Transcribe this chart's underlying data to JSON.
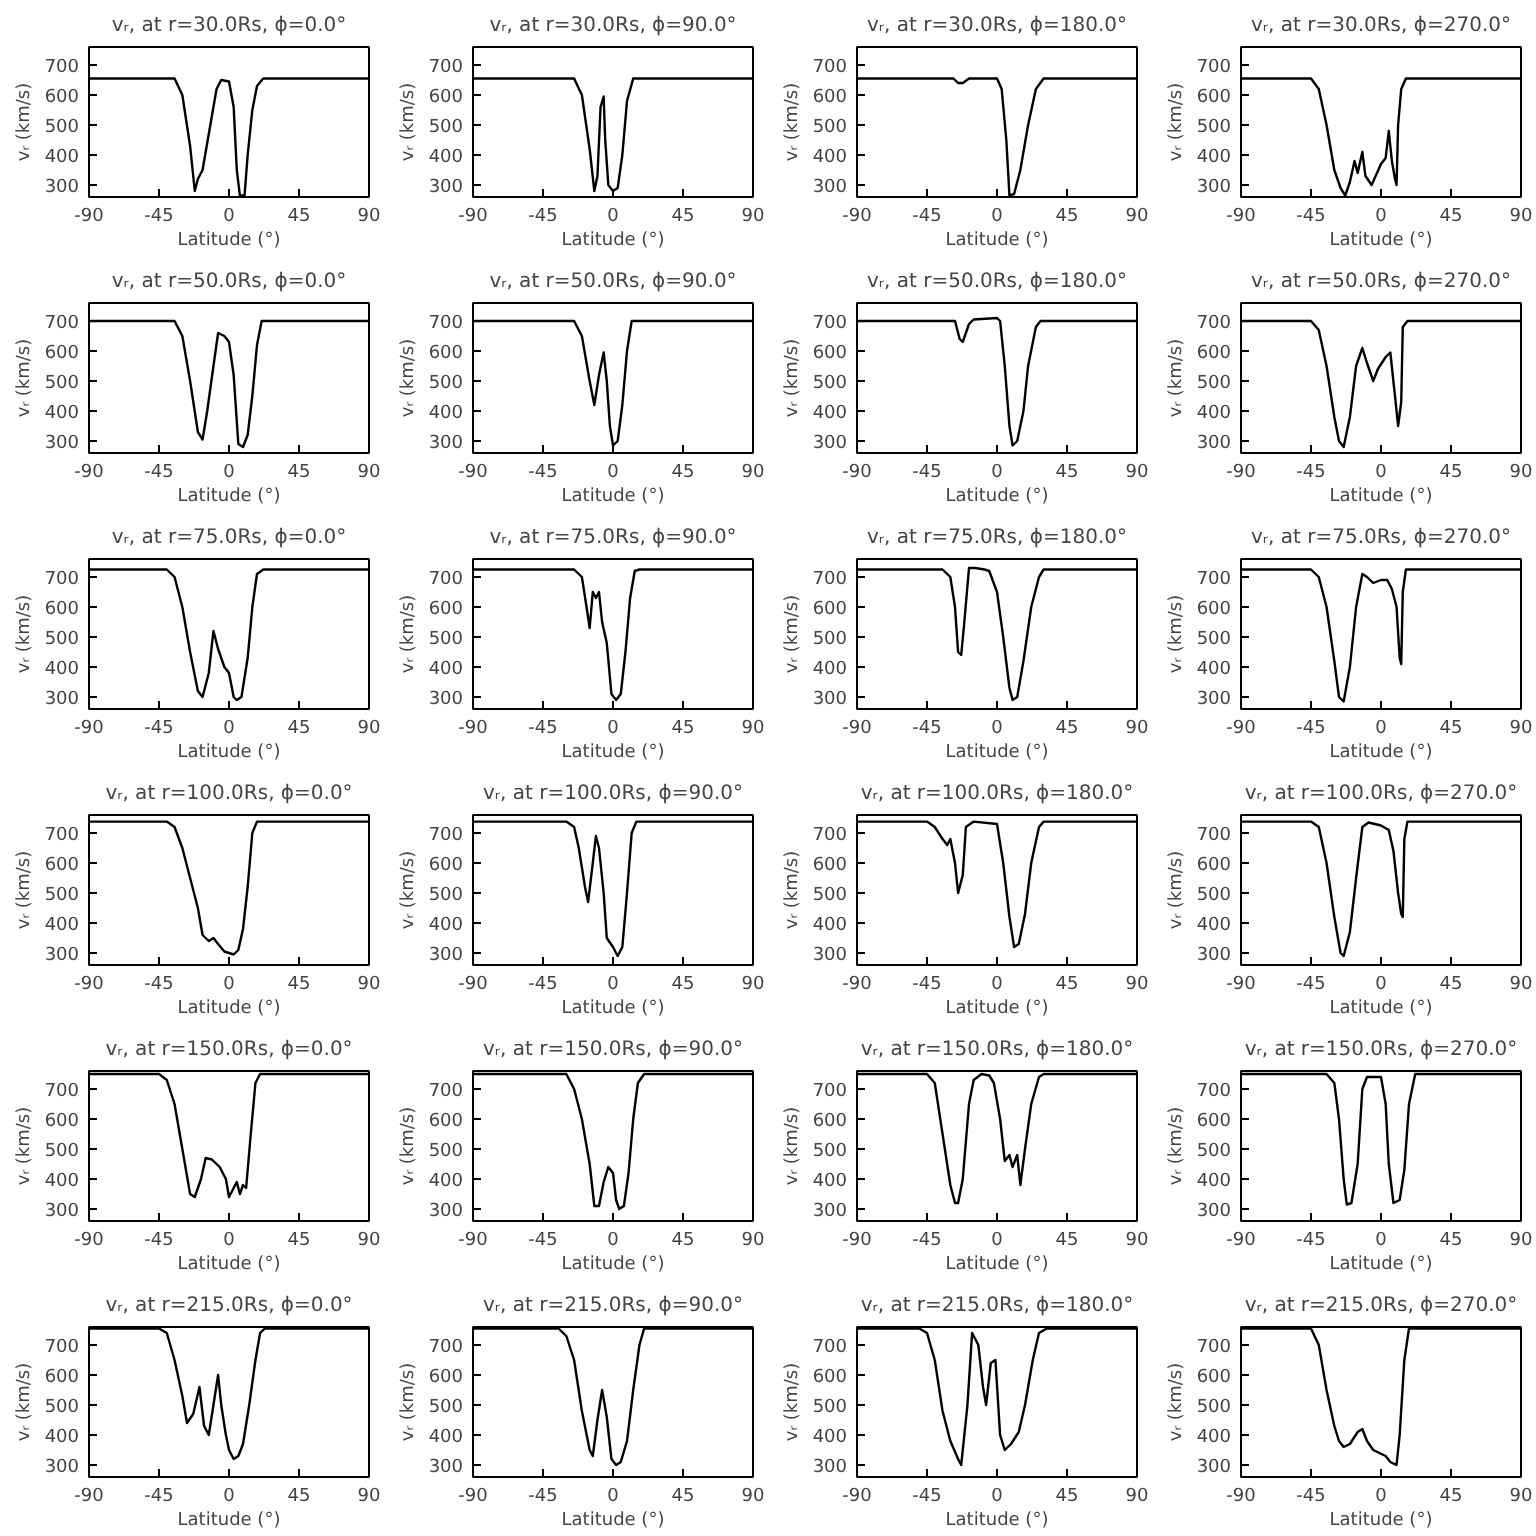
{
  "chart_data": [
    {
      "type": "line",
      "title": "vᵣ, at r=30.0Rs, ϕ=0.0°",
      "xlabel": "Latitude (°)",
      "ylabel": "vᵣ (km/s)",
      "color": "#000000",
      "xlim": [
        -90,
        90
      ],
      "ylim": [
        260,
        760
      ],
      "xticks": [
        -90,
        -45,
        0,
        45,
        90
      ],
      "yticks": [
        300,
        400,
        500,
        600,
        700
      ],
      "x": [
        -90,
        -35,
        -30,
        -25,
        -22,
        -20,
        -17,
        -12,
        -8,
        -5,
        0,
        3,
        5,
        7,
        10,
        12,
        15,
        18,
        22,
        90
      ],
      "values": [
        655,
        655,
        600,
        430,
        280,
        320,
        350,
        500,
        620,
        650,
        645,
        560,
        350,
        265,
        265,
        400,
        550,
        630,
        655,
        655
      ]
    },
    {
      "type": "line",
      "title": "vᵣ, at r=30.0Rs, ϕ=90.0°",
      "xlabel": "Latitude (°)",
      "ylabel": "vᵣ (km/s)",
      "color": "#000000",
      "xlim": [
        -90,
        90
      ],
      "ylim": [
        260,
        760
      ],
      "xticks": [
        -90,
        -45,
        0,
        45,
        90
      ],
      "yticks": [
        300,
        400,
        500,
        600,
        700
      ],
      "x": [
        -90,
        -25,
        -20,
        -15,
        -12,
        -10,
        -8,
        -6,
        -5,
        -3,
        0,
        3,
        6,
        9,
        13,
        90
      ],
      "values": [
        655,
        655,
        600,
        420,
        280,
        330,
        560,
        595,
        450,
        300,
        280,
        290,
        400,
        580,
        655,
        655
      ]
    },
    {
      "type": "line",
      "title": "vᵣ, at r=30.0Rs, ϕ=180.0°",
      "xlabel": "Latitude (°)",
      "ylabel": "vᵣ (km/s)",
      "color": "#000000",
      "xlim": [
        -90,
        90
      ],
      "ylim": [
        260,
        760
      ],
      "xticks": [
        -90,
        -45,
        0,
        45,
        90
      ],
      "yticks": [
        300,
        400,
        500,
        600,
        700
      ],
      "x": [
        -90,
        -28,
        -25,
        -22,
        -18,
        0,
        3,
        6,
        8,
        11,
        15,
        20,
        25,
        30,
        90
      ],
      "values": [
        655,
        655,
        640,
        640,
        655,
        655,
        620,
        450,
        265,
        270,
        350,
        500,
        620,
        655,
        655
      ]
    },
    {
      "type": "line",
      "title": "vᵣ, at r=30.0Rs, ϕ=270.0°",
      "xlabel": "Latitude (°)",
      "ylabel": "vᵣ (km/s)",
      "color": "#000000",
      "xlim": [
        -90,
        90
      ],
      "ylim": [
        260,
        760
      ],
      "xticks": [
        -90,
        -45,
        0,
        45,
        90
      ],
      "yticks": [
        300,
        400,
        500,
        600,
        700
      ],
      "x": [
        -90,
        -45,
        -40,
        -35,
        -30,
        -26,
        -23,
        -20,
        -17,
        -15,
        -12,
        -10,
        -6,
        0,
        3,
        5,
        7,
        9,
        10,
        11,
        13,
        16,
        90
      ],
      "values": [
        655,
        655,
        620,
        500,
        350,
        290,
        265,
        310,
        380,
        340,
        410,
        330,
        300,
        370,
        390,
        480,
        380,
        320,
        300,
        500,
        620,
        655,
        655
      ]
    },
    {
      "type": "line",
      "title": "vᵣ, at r=50.0Rs, ϕ=0.0°",
      "xlabel": "Latitude (°)",
      "ylabel": "vᵣ (km/s)",
      "color": "#000000",
      "xlim": [
        -90,
        90
      ],
      "ylim": [
        260,
        760
      ],
      "xticks": [
        -90,
        -45,
        0,
        45,
        90
      ],
      "yticks": [
        300,
        400,
        500,
        600,
        700
      ],
      "x": [
        -90,
        -35,
        -30,
        -25,
        -20,
        -17,
        -14,
        -10,
        -7,
        -3,
        0,
        3,
        6,
        9,
        12,
        15,
        18,
        21,
        90
      ],
      "values": [
        700,
        700,
        650,
        500,
        330,
        305,
        400,
        550,
        660,
        650,
        630,
        520,
        290,
        280,
        320,
        450,
        620,
        700,
        700
      ]
    },
    {
      "type": "line",
      "title": "vᵣ, at r=50.0Rs, ϕ=90.0°",
      "xlabel": "Latitude (°)",
      "ylabel": "vᵣ (km/s)",
      "color": "#000000",
      "xlim": [
        -90,
        90
      ],
      "ylim": [
        260,
        760
      ],
      "xticks": [
        -90,
        -45,
        0,
        45,
        90
      ],
      "yticks": [
        300,
        400,
        500,
        600,
        700
      ],
      "x": [
        -90,
        -25,
        -20,
        -15,
        -12,
        -9,
        -6,
        -4,
        -2,
        0,
        3,
        6,
        9,
        12,
        90
      ],
      "values": [
        700,
        700,
        650,
        500,
        420,
        520,
        595,
        500,
        350,
        285,
        300,
        420,
        600,
        700,
        700
      ]
    },
    {
      "type": "line",
      "title": "vᵣ, at r=50.0Rs, ϕ=180.0°",
      "xlabel": "Latitude (°)",
      "ylabel": "vᵣ (km/s)",
      "color": "#000000",
      "xlim": [
        -90,
        90
      ],
      "ylim": [
        260,
        760
      ],
      "xticks": [
        -90,
        -45,
        0,
        45,
        90
      ],
      "yticks": [
        300,
        400,
        500,
        600,
        700
      ],
      "x": [
        -90,
        -27,
        -24,
        -22,
        -18,
        -15,
        0,
        2,
        5,
        8,
        10,
        13,
        17,
        20,
        25,
        28,
        90
      ],
      "values": [
        700,
        700,
        640,
        630,
        690,
        705,
        710,
        700,
        550,
        350,
        285,
        300,
        400,
        550,
        680,
        700,
        700
      ]
    },
    {
      "type": "line",
      "title": "vᵣ, at r=50.0Rs, ϕ=270.0°",
      "xlabel": "Latitude (°)",
      "ylabel": "vᵣ (km/s)",
      "color": "#000000",
      "xlim": [
        -90,
        90
      ],
      "ylim": [
        260,
        760
      ],
      "xticks": [
        -90,
        -45,
        0,
        45,
        90
      ],
      "yticks": [
        300,
        400,
        500,
        600,
        700
      ],
      "x": [
        -90,
        -45,
        -40,
        -35,
        -30,
        -27,
        -24,
        -20,
        -16,
        -12,
        -9,
        -5,
        -2,
        3,
        6,
        9,
        11,
        13,
        14,
        17,
        90
      ],
      "values": [
        700,
        700,
        670,
        550,
        380,
        300,
        280,
        380,
        550,
        610,
        560,
        500,
        540,
        580,
        595,
        450,
        350,
        430,
        680,
        700,
        700
      ]
    },
    {
      "type": "line",
      "title": "vᵣ, at r=75.0Rs, ϕ=0.0°",
      "xlabel": "Latitude (°)",
      "ylabel": "vᵣ (km/s)",
      "color": "#000000",
      "xlim": [
        -90,
        90
      ],
      "ylim": [
        260,
        760
      ],
      "xticks": [
        -90,
        -45,
        0,
        45,
        90
      ],
      "yticks": [
        300,
        400,
        500,
        600,
        700
      ],
      "x": [
        -90,
        -40,
        -35,
        -30,
        -25,
        -20,
        -17,
        -13,
        -10,
        -7,
        -3,
        0,
        3,
        5,
        8,
        12,
        15,
        18,
        22,
        90
      ],
      "values": [
        725,
        725,
        700,
        600,
        450,
        320,
        300,
        380,
        520,
        460,
        400,
        380,
        300,
        290,
        300,
        430,
        600,
        710,
        725,
        725
      ]
    },
    {
      "type": "line",
      "title": "vᵣ, at r=75.0Rs, ϕ=90.0°",
      "xlabel": "Latitude (°)",
      "ylabel": "vᵣ (km/s)",
      "color": "#000000",
      "xlim": [
        -90,
        90
      ],
      "ylim": [
        260,
        760
      ],
      "xticks": [
        -90,
        -45,
        0,
        45,
        90
      ],
      "yticks": [
        300,
        400,
        500,
        600,
        700
      ],
      "x": [
        -90,
        -25,
        -20,
        -17,
        -15,
        -13,
        -11,
        -9,
        -7,
        -4,
        -1,
        2,
        5,
        8,
        11,
        14,
        17,
        90
      ],
      "values": [
        725,
        725,
        700,
        600,
        530,
        650,
        630,
        650,
        550,
        480,
        310,
        290,
        310,
        450,
        630,
        720,
        725,
        725
      ]
    },
    {
      "type": "line",
      "title": "vᵣ, at r=75.0Rs, ϕ=180.0°",
      "xlabel": "Latitude (°)",
      "ylabel": "vᵣ (km/s)",
      "color": "#000000",
      "xlim": [
        -90,
        90
      ],
      "ylim": [
        260,
        760
      ],
      "xticks": [
        -90,
        -45,
        0,
        45,
        90
      ],
      "yticks": [
        300,
        400,
        500,
        600,
        700
      ],
      "x": [
        -90,
        -35,
        -30,
        -27,
        -25,
        -23,
        -21,
        -18,
        -14,
        -8,
        -5,
        0,
        4,
        8,
        10,
        13,
        17,
        22,
        27,
        30,
        90
      ],
      "values": [
        725,
        725,
        700,
        600,
        450,
        440,
        550,
        730,
        730,
        725,
        720,
        650,
        500,
        330,
        290,
        300,
        420,
        600,
        700,
        725,
        725
      ]
    },
    {
      "type": "line",
      "title": "vᵣ, at r=75.0Rs, ϕ=270.0°",
      "xlabel": "Latitude (°)",
      "ylabel": "vᵣ (km/s)",
      "color": "#000000",
      "xlim": [
        -90,
        90
      ],
      "ylim": [
        260,
        760
      ],
      "xticks": [
        -90,
        -45,
        0,
        45,
        90
      ],
      "yticks": [
        300,
        400,
        500,
        600,
        700
      ],
      "x": [
        -90,
        -45,
        -40,
        -35,
        -30,
        -27,
        -24,
        -20,
        -16,
        -12,
        -9,
        -5,
        0,
        4,
        7,
        10,
        12,
        13,
        14,
        16,
        90
      ],
      "values": [
        725,
        725,
        700,
        600,
        420,
        300,
        285,
        400,
        600,
        710,
        700,
        680,
        690,
        690,
        660,
        600,
        430,
        410,
        650,
        725,
        725
      ]
    },
    {
      "type": "line",
      "title": "vᵣ, at r=100.0Rs, ϕ=0.0°",
      "xlabel": "Latitude (°)",
      "ylabel": "vᵣ (km/s)",
      "color": "#000000",
      "xlim": [
        -90,
        90
      ],
      "ylim": [
        260,
        760
      ],
      "xticks": [
        -90,
        -45,
        0,
        45,
        90
      ],
      "yticks": [
        300,
        400,
        500,
        600,
        700
      ],
      "x": [
        -90,
        -40,
        -35,
        -30,
        -25,
        -20,
        -17,
        -13,
        -10,
        -7,
        -3,
        0,
        3,
        6,
        9,
        12,
        15,
        18,
        90
      ],
      "values": [
        738,
        738,
        720,
        650,
        550,
        450,
        360,
        340,
        350,
        330,
        305,
        300,
        295,
        310,
        380,
        520,
        700,
        738,
        738
      ]
    },
    {
      "type": "line",
      "title": "vᵣ, at r=100.0Rs, ϕ=90.0°",
      "xlabel": "Latitude (°)",
      "ylabel": "vᵣ (km/s)",
      "color": "#000000",
      "xlim": [
        -90,
        90
      ],
      "ylim": [
        260,
        760
      ],
      "xticks": [
        -90,
        -45,
        0,
        45,
        90
      ],
      "yticks": [
        300,
        400,
        500,
        600,
        700
      ],
      "x": [
        -90,
        -30,
        -25,
        -22,
        -18,
        -16,
        -13,
        -11,
        -9,
        -6,
        -4,
        0,
        3,
        6,
        9,
        12,
        15,
        90
      ],
      "values": [
        738,
        738,
        720,
        650,
        520,
        470,
        600,
        690,
        650,
        500,
        350,
        320,
        290,
        320,
        500,
        700,
        738,
        738
      ]
    },
    {
      "type": "line",
      "title": "vᵣ, at r=100.0Rs, ϕ=180.0°",
      "xlabel": "Latitude (°)",
      "ylabel": "vᵣ (km/s)",
      "color": "#000000",
      "xlim": [
        -90,
        90
      ],
      "ylim": [
        260,
        760
      ],
      "xticks": [
        -90,
        -45,
        0,
        45,
        90
      ],
      "yticks": [
        300,
        400,
        500,
        600,
        700
      ],
      "x": [
        -90,
        -45,
        -40,
        -35,
        -32,
        -30,
        -27,
        -25,
        -22,
        -20,
        -15,
        0,
        4,
        8,
        11,
        14,
        18,
        22,
        27,
        30,
        90
      ],
      "values": [
        738,
        738,
        720,
        680,
        660,
        680,
        600,
        500,
        560,
        720,
        738,
        730,
        600,
        420,
        320,
        330,
        430,
        600,
        720,
        738,
        738
      ]
    },
    {
      "type": "line",
      "title": "vᵣ, at r=100.0Rs, ϕ=270.0°",
      "xlabel": "Latitude (°)",
      "ylabel": "vᵣ (km/s)",
      "color": "#000000",
      "xlim": [
        -90,
        90
      ],
      "ylim": [
        260,
        760
      ],
      "xticks": [
        -90,
        -45,
        0,
        45,
        90
      ],
      "yticks": [
        300,
        400,
        500,
        600,
        700
      ],
      "x": [
        -90,
        -45,
        -40,
        -35,
        -30,
        -26,
        -24,
        -20,
        -16,
        -12,
        -8,
        0,
        5,
        8,
        11,
        13,
        14,
        15,
        17,
        90
      ],
      "values": [
        738,
        738,
        720,
        600,
        420,
        300,
        290,
        370,
        550,
        720,
        735,
        725,
        710,
        640,
        500,
        430,
        420,
        680,
        738,
        738
      ]
    },
    {
      "type": "line",
      "title": "vᵣ, at r=150.0Rs, ϕ=0.0°",
      "xlabel": "Latitude (°)",
      "ylabel": "vᵣ (km/s)",
      "color": "#000000",
      "xlim": [
        -90,
        90
      ],
      "ylim": [
        260,
        760
      ],
      "xticks": [
        -90,
        -45,
        0,
        45,
        90
      ],
      "yticks": [
        300,
        400,
        500,
        600,
        700
      ],
      "x": [
        -90,
        -45,
        -40,
        -35,
        -30,
        -25,
        -22,
        -18,
        -15,
        -11,
        -6,
        -2,
        0,
        3,
        5,
        7,
        9,
        11,
        14,
        17,
        20,
        90
      ],
      "values": [
        750,
        750,
        730,
        650,
        500,
        350,
        340,
        400,
        470,
        465,
        440,
        400,
        340,
        370,
        390,
        350,
        380,
        370,
        550,
        720,
        750,
        750
      ]
    },
    {
      "type": "line",
      "title": "vᵣ, at r=150.0Rs, ϕ=90.0°",
      "xlabel": "Latitude (°)",
      "ylabel": "vᵣ (km/s)",
      "color": "#000000",
      "xlim": [
        -90,
        90
      ],
      "ylim": [
        260,
        760
      ],
      "xticks": [
        -90,
        -45,
        0,
        45,
        90
      ],
      "yticks": [
        300,
        400,
        500,
        600,
        700
      ],
      "x": [
        -90,
        -30,
        -25,
        -20,
        -15,
        -12,
        -9,
        -6,
        -3,
        0,
        2,
        4,
        7,
        10,
        13,
        16,
        20,
        90
      ],
      "values": [
        750,
        750,
        700,
        600,
        450,
        310,
        310,
        390,
        440,
        420,
        330,
        300,
        310,
        420,
        600,
        720,
        750,
        750
      ]
    },
    {
      "type": "line",
      "title": "vᵣ, at r=150.0Rs, ϕ=180.0°",
      "xlabel": "Latitude (°)",
      "ylabel": "vᵣ (km/s)",
      "color": "#000000",
      "xlim": [
        -90,
        90
      ],
      "ylim": [
        260,
        760
      ],
      "xticks": [
        -90,
        -45,
        0,
        45,
        90
      ],
      "yticks": [
        300,
        400,
        500,
        600,
        700
      ],
      "x": [
        -90,
        -45,
        -40,
        -35,
        -30,
        -27,
        -25,
        -22,
        -18,
        -15,
        -10,
        -5,
        -2,
        2,
        5,
        8,
        10,
        13,
        15,
        18,
        22,
        27,
        30,
        90
      ],
      "values": [
        750,
        750,
        720,
        550,
        380,
        320,
        320,
        400,
        650,
        730,
        750,
        745,
        720,
        600,
        460,
        480,
        440,
        480,
        380,
        500,
        650,
        740,
        750,
        750
      ]
    },
    {
      "type": "line",
      "title": "vᵣ, at r=150.0Rs, ϕ=270.0°",
      "xlabel": "Latitude (°)",
      "ylabel": "vᵣ (km/s)",
      "color": "#000000",
      "xlim": [
        -90,
        90
      ],
      "ylim": [
        260,
        760
      ],
      "xticks": [
        -90,
        -45,
        0,
        45,
        90
      ],
      "yticks": [
        300,
        400,
        500,
        600,
        700
      ],
      "x": [
        -90,
        -35,
        -30,
        -27,
        -24,
        -22,
        -19,
        -15,
        -12,
        -9,
        0,
        3,
        5,
        8,
        12,
        15,
        18,
        22,
        90
      ],
      "values": [
        750,
        750,
        720,
        600,
        400,
        315,
        320,
        450,
        700,
        740,
        740,
        650,
        450,
        320,
        330,
        430,
        650,
        750,
        750
      ]
    },
    {
      "type": "line",
      "title": "vᵣ, at r=215.0Rs, ϕ=0.0°",
      "xlabel": "Latitude (°)",
      "ylabel": "vᵣ (km/s)",
      "color": "#000000",
      "xlim": [
        -90,
        90
      ],
      "ylim": [
        260,
        760
      ],
      "xticks": [
        -90,
        -45,
        0,
        45,
        90
      ],
      "yticks": [
        300,
        400,
        500,
        600,
        700
      ],
      "x": [
        -90,
        -45,
        -40,
        -35,
        -30,
        -27,
        -23,
        -19,
        -16,
        -13,
        -10,
        -7,
        -5,
        -2,
        0,
        3,
        6,
        9,
        13,
        17,
        20,
        23,
        90
      ],
      "values": [
        755,
        755,
        740,
        650,
        530,
        440,
        470,
        560,
        430,
        400,
        500,
        600,
        500,
        400,
        350,
        320,
        330,
        370,
        500,
        650,
        740,
        755,
        755
      ]
    },
    {
      "type": "line",
      "title": "vᵣ, at r=215.0Rs, ϕ=90.0°",
      "xlabel": "Latitude (°)",
      "ylabel": "vᵣ (km/s)",
      "color": "#000000",
      "xlim": [
        -90,
        90
      ],
      "ylim": [
        260,
        760
      ],
      "xticks": [
        -90,
        -45,
        0,
        45,
        90
      ],
      "yticks": [
        300,
        400,
        500,
        600,
        700
      ],
      "x": [
        -90,
        -35,
        -30,
        -25,
        -20,
        -15,
        -13,
        -10,
        -7,
        -4,
        -1,
        2,
        5,
        9,
        13,
        17,
        20,
        90
      ],
      "values": [
        755,
        755,
        730,
        650,
        480,
        350,
        330,
        450,
        550,
        460,
        320,
        300,
        310,
        380,
        550,
        700,
        755,
        755
      ]
    },
    {
      "type": "line",
      "title": "vᵣ, at r=215.0Rs, ϕ=180.0°",
      "xlabel": "Latitude (°)",
      "ylabel": "vᵣ (km/s)",
      "color": "#000000",
      "xlim": [
        -90,
        90
      ],
      "ylim": [
        260,
        760
      ],
      "xticks": [
        -90,
        -45,
        0,
        45,
        90
      ],
      "yticks": [
        300,
        400,
        500,
        600,
        700
      ],
      "x": [
        -90,
        -50,
        -45,
        -40,
        -35,
        -30,
        -25,
        -23,
        -19,
        -16,
        -12,
        -9,
        -7,
        -4,
        -1,
        2,
        5,
        9,
        14,
        18,
        23,
        27,
        32,
        90
      ],
      "values": [
        755,
        755,
        740,
        650,
        480,
        380,
        320,
        300,
        500,
        740,
        700,
        560,
        500,
        640,
        650,
        400,
        350,
        370,
        410,
        500,
        650,
        740,
        755,
        755
      ]
    },
    {
      "type": "line",
      "title": "vᵣ, at r=215.0Rs, ϕ=270.0°",
      "xlabel": "Latitude (°)",
      "ylabel": "vᵣ (km/s)",
      "color": "#000000",
      "xlim": [
        -90,
        90
      ],
      "ylim": [
        260,
        760
      ],
      "xticks": [
        -90,
        -45,
        0,
        45,
        90
      ],
      "yticks": [
        300,
        400,
        500,
        600,
        700
      ],
      "x": [
        -90,
        -45,
        -40,
        -35,
        -30,
        -27,
        -24,
        -20,
        -15,
        -12,
        -9,
        -5,
        -1,
        3,
        6,
        10,
        12,
        15,
        18,
        90
      ],
      "values": [
        755,
        755,
        700,
        550,
        430,
        380,
        360,
        370,
        410,
        420,
        380,
        350,
        340,
        330,
        310,
        300,
        400,
        650,
        755,
        755
      ]
    }
  ]
}
